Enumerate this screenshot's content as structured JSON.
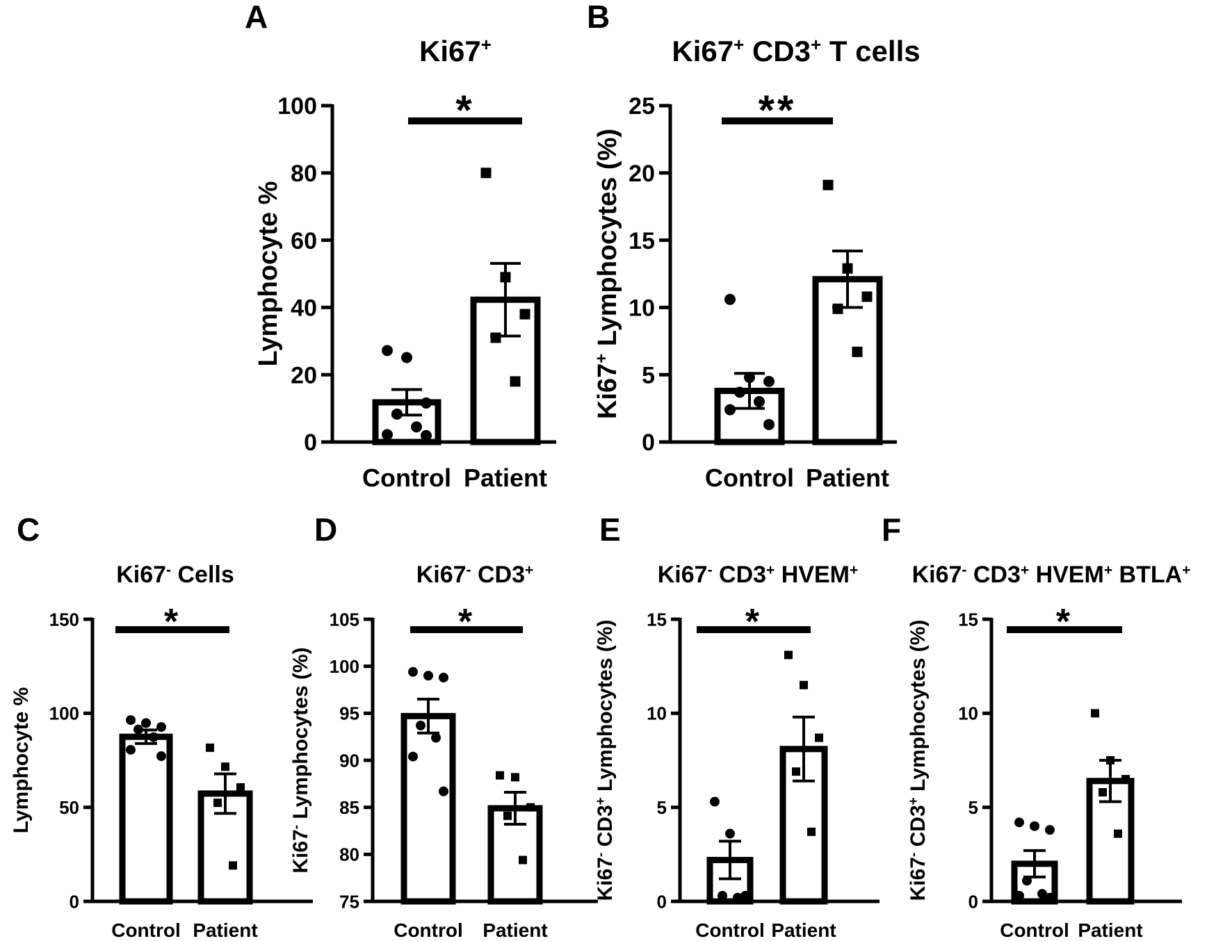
{
  "chart_data": [
    {
      "panel": "A",
      "type": "bar",
      "title": "Ki67",
      "title_sup": "+",
      "title_suffix": "",
      "ylabel": "Lymphocyte %",
      "ylim": [
        0,
        100
      ],
      "yticks": [
        "0",
        "20",
        "40",
        "60",
        "80",
        "100"
      ],
      "categories": [
        "Control",
        "Patient"
      ],
      "means": [
        11.8,
        42.3
      ],
      "sem": [
        3.8,
        10.8
      ],
      "points": [
        [
          27.2,
          25.1,
          11.6,
          8.3,
          4.5,
          2.2,
          1.9
        ],
        [
          80.0,
          49.0,
          38.0,
          31.0,
          18.0
        ]
      ],
      "markers": [
        "circle",
        "square"
      ],
      "significance": "*"
    },
    {
      "panel": "B",
      "type": "bar",
      "title": "Ki67",
      "title_sup": "+",
      "title_suffix": " CD3",
      "title_sup2": "+",
      "title_suffix2": " T cells",
      "ylabel": "Ki67",
      "ylabel_sup": "+",
      "ylabel_rest": " Lymphocytes (%)",
      "ylim": [
        0,
        25
      ],
      "yticks": [
        "0",
        "5",
        "10",
        "15",
        "20",
        "25"
      ],
      "categories": [
        "Control",
        "Patient"
      ],
      "means": [
        3.8,
        12.1
      ],
      "sem": [
        1.3,
        2.1
      ],
      "points": [
        [
          10.6,
          4.8,
          4.5,
          3.7,
          3.0,
          2.4,
          1.3
        ],
        [
          19.1,
          12.9,
          10.8,
          9.9,
          6.7
        ]
      ],
      "markers": [
        "circle",
        "square"
      ],
      "significance": "**"
    },
    {
      "panel": "C",
      "type": "bar",
      "title": "Ki67",
      "title_sup": "-",
      "title_suffix": " Cells",
      "ylabel": "Lymphocyte %",
      "ylim": [
        0,
        150
      ],
      "yticks": [
        "0",
        "50",
        "100",
        "150"
      ],
      "categories": [
        "Control",
        "Patient"
      ],
      "means": [
        87.5,
        57.3
      ],
      "sem": [
        3.6,
        10.5
      ],
      "points": [
        [
          96.4,
          94.8,
          92.7,
          91.4,
          87.3,
          80.6,
          77.2
        ],
        [
          81.7,
          71.6,
          60.6,
          52.4,
          19.1
        ]
      ],
      "markers": [
        "circle",
        "square"
      ],
      "significance": "*"
    },
    {
      "panel": "D",
      "type": "bar",
      "title": "Ki67",
      "title_sup": "-",
      "title_suffix": " CD3",
      "title_sup2": "+",
      "title_suffix2": "",
      "ylabel": "Ki67",
      "ylabel_sup": "-",
      "ylabel_rest": " Lymphocytes (%)",
      "ylim": [
        75,
        105
      ],
      "yticks": [
        "75",
        "80",
        "85",
        "90",
        "95",
        "100",
        "105"
      ],
      "categories": [
        "Control",
        "Patient"
      ],
      "means": [
        94.7,
        84.9
      ],
      "sem": [
        1.8,
        1.7
      ],
      "points": [
        [
          99.4,
          99.0,
          98.8,
          93.7,
          92.4,
          90.4,
          86.7
        ],
        [
          88.4,
          88.2,
          85.0,
          84.1,
          79.4
        ]
      ],
      "markers": [
        "circle",
        "square"
      ],
      "significance": "*"
    },
    {
      "panel": "E",
      "type": "bar",
      "title": "Ki67",
      "title_sup": "-",
      "title_suffix": " CD3",
      "title_sup2": "+",
      "title_suffix2": " HVEM",
      "title_sup3": "+",
      "ylabel": "Ki67",
      "ylabel_sup": "-",
      "ylabel_rest": " CD3",
      "ylabel_sup2": "+",
      "ylabel_rest2": " Lymphocytes (%)",
      "ylim": [
        0,
        15
      ],
      "yticks": [
        "0",
        "5",
        "10",
        "15"
      ],
      "categories": [
        "Control",
        "Patient"
      ],
      "means": [
        2.2,
        8.1
      ],
      "sem": [
        1.0,
        1.7
      ],
      "points": [
        [
          5.3,
          3.6,
          0.3,
          0.3,
          0.2
        ],
        [
          13.1,
          11.5,
          8.7,
          6.9,
          3.7
        ]
      ],
      "markers": [
        "circle",
        "square"
      ],
      "significance": "*"
    },
    {
      "panel": "F",
      "type": "bar",
      "title": "Ki67",
      "title_sup": "-",
      "title_suffix": " CD3",
      "title_sup2": "+",
      "title_suffix2": " HVEM",
      "title_sup3": "+",
      "title_suffix3": " BTLA",
      "title_sup4": "+",
      "ylabel": "Ki67",
      "ylabel_sup": "-",
      "ylabel_rest": " CD3",
      "ylabel_sup2": "+",
      "ylabel_rest2": " Lymphocytes (%)",
      "ylim": [
        0,
        15
      ],
      "yticks": [
        "0",
        "5",
        "10",
        "15"
      ],
      "categories": [
        "Control",
        "Patient"
      ],
      "means": [
        2.0,
        6.4
      ],
      "sem": [
        0.7,
        1.1
      ],
      "points": [
        [
          4.2,
          4.0,
          3.8,
          1.1,
          0.4,
          0.3,
          0.2
        ],
        [
          10.0,
          7.5,
          6.5,
          5.8,
          3.6
        ]
      ],
      "markers": [
        "circle",
        "square"
      ],
      "significance": "*"
    }
  ]
}
